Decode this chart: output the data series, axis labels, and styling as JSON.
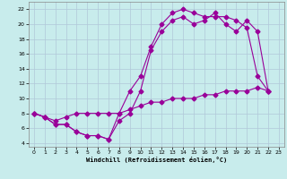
{
  "xlabel": "Windchill (Refroidissement éolien,°C)",
  "xlim": [
    -0.5,
    23.5
  ],
  "ylim": [
    3.5,
    23
  ],
  "xticks": [
    0,
    1,
    2,
    3,
    4,
    5,
    6,
    7,
    8,
    9,
    10,
    11,
    12,
    13,
    14,
    15,
    16,
    17,
    18,
    19,
    20,
    21,
    22,
    23
  ],
  "yticks": [
    4,
    6,
    8,
    10,
    12,
    14,
    16,
    18,
    20,
    22
  ],
  "background_color": "#c8ecec",
  "line_color": "#990099",
  "grid_color": "#b0c8d8",
  "line1_x": [
    0,
    1,
    2,
    3,
    4,
    5,
    6,
    7,
    8,
    9,
    10,
    11,
    12,
    13,
    14,
    15,
    16,
    17,
    18,
    19,
    20,
    21,
    22
  ],
  "line1_y": [
    8.0,
    7.5,
    6.5,
    6.5,
    5.5,
    5.0,
    5.0,
    4.5,
    8.0,
    11.0,
    13.0,
    17.0,
    20.0,
    21.5,
    22.0,
    21.5,
    21.0,
    21.0,
    21.0,
    20.5,
    19.5,
    13.0,
    11.0
  ],
  "line2_x": [
    0,
    1,
    2,
    3,
    4,
    5,
    6,
    7,
    8,
    9,
    10,
    11,
    12,
    13,
    14,
    15,
    16,
    17,
    18,
    19,
    20,
    21,
    22
  ],
  "line2_y": [
    8.0,
    7.5,
    6.5,
    6.5,
    5.5,
    5.0,
    5.0,
    4.5,
    7.0,
    8.0,
    11.0,
    16.5,
    19.0,
    20.5,
    21.0,
    20.0,
    20.5,
    21.5,
    20.0,
    19.0,
    20.5,
    19.0,
    11.0
  ],
  "line3_x": [
    0,
    1,
    2,
    3,
    4,
    5,
    6,
    7,
    8,
    9,
    10,
    11,
    12,
    13,
    14,
    15,
    16,
    17,
    18,
    19,
    20,
    21,
    22
  ],
  "line3_y": [
    8.0,
    7.5,
    7.0,
    7.5,
    8.0,
    8.0,
    8.0,
    8.0,
    8.0,
    8.5,
    9.0,
    9.5,
    9.5,
    10.0,
    10.0,
    10.0,
    10.5,
    10.5,
    11.0,
    11.0,
    11.0,
    11.5,
    11.0
  ],
  "marker": "D",
  "markersize": 2.5,
  "linewidth": 0.8
}
